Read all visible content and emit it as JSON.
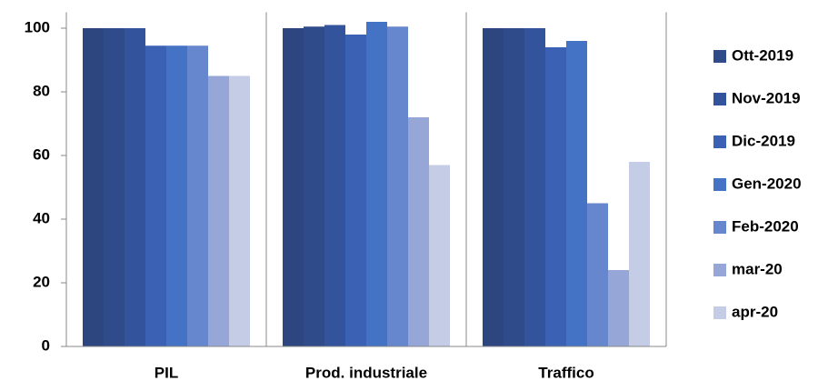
{
  "chart_data": {
    "type": "bar",
    "categories": [
      "PIL",
      "Prod. industriale",
      "Traffico"
    ],
    "series": [
      {
        "color": "#2d4680",
        "values": [
          100,
          100,
          100
        ]
      },
      {
        "name": "Ott-2019",
        "color": "#2f4b8a",
        "values": [
          100,
          100.5,
          100
        ]
      },
      {
        "name": "Nov-2019",
        "color": "#33539c",
        "values": [
          100,
          101,
          100
        ]
      },
      {
        "name": "Dic-2019",
        "color": "#3a61b3",
        "values": [
          94.5,
          98,
          94
        ]
      },
      {
        "name": "Gen-2020",
        "color": "#4472c4",
        "values": [
          94.5,
          102,
          96
        ]
      },
      {
        "name": "Feb-2020",
        "color": "#6686cd",
        "values": [
          94.5,
          100.5,
          45
        ]
      },
      {
        "name": "mar-20",
        "color": "#96a7d7",
        "values": [
          85,
          72,
          24
        ]
      },
      {
        "name": "apr-20",
        "color": "#c4cce6",
        "values": [
          85,
          57,
          58
        ]
      }
    ],
    "ylim": [
      0,
      105
    ],
    "yticks": [
      0,
      20,
      40,
      60,
      80,
      100
    ],
    "grid": false,
    "legend": "right"
  }
}
